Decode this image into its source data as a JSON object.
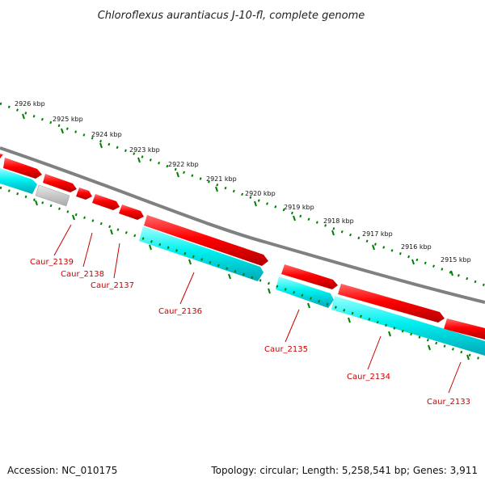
{
  "title": "Chloroflexus aurantiacus J-10-fl, complete genome",
  "footer": {
    "accession": "Accession: NC_010175",
    "summary": "Topology: circular; Length: 5,258,541 bp; Genes: 3,911"
  },
  "colors": {
    "backbone": "#808080",
    "forward_gene": "#ff0000",
    "reverse_gene": "#00ffff",
    "other_gene": "#c8c8c8",
    "ticks": "#008000",
    "gene_label": "#cc0000"
  },
  "ruler": {
    "unit": "kbp",
    "labels": [
      "2926 kbp",
      "2925 kbp",
      "2924 kbp",
      "2923 kbp",
      "2922 kbp",
      "2921 kbp",
      "2920 kbp",
      "2919 kbp",
      "2918 kbp",
      "2917 kbp",
      "2916 kbp",
      "2915 kbp"
    ]
  },
  "genes": [
    {
      "label": "Caur_2139"
    },
    {
      "label": "Caur_2138"
    },
    {
      "label": "Caur_2137"
    },
    {
      "label": "Caur_2136"
    },
    {
      "label": "Caur_2135"
    },
    {
      "label": "Caur_2134"
    },
    {
      "label": "Caur_2133"
    }
  ]
}
